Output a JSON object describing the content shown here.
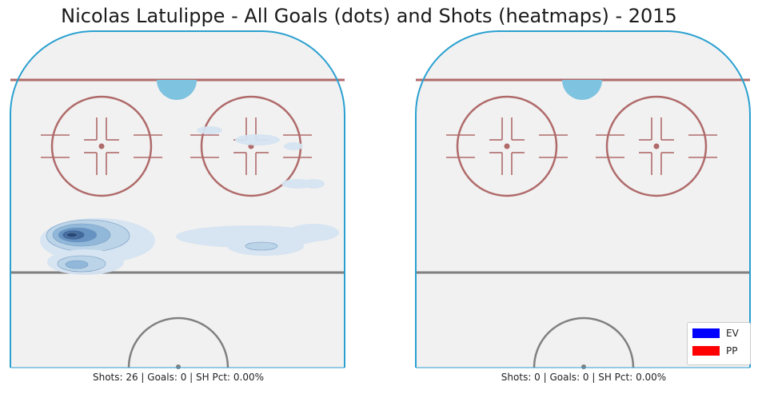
{
  "title": "Nicolas Latulippe - All Goals (dots) and Shots (heatmaps) - 2015",
  "colors": {
    "ice": "#f1f1f1",
    "boards": "#2aa0d0",
    "red_line": "#b06a6a",
    "blue_line_gray": "#808080",
    "crease": "#7ec3e0",
    "heat": [
      "#d6e4f1",
      "#b9d3e8",
      "#8db6d8",
      "#5f8fc0",
      "#3a6399",
      "#1e3f70"
    ],
    "ev": "#0000ff",
    "pp": "#ff0000"
  },
  "panels": {
    "left": {
      "caption": "Shots: 26 | Goals: 0 | SH Pct: 0.00%"
    },
    "right": {
      "caption": "Shots: 0 | Goals: 0 | SH Pct: 0.00%"
    }
  },
  "legend": [
    {
      "label": "EV",
      "color": "#0000ff"
    },
    {
      "label": "PP",
      "color": "#ff0000"
    }
  ],
  "chart_data": [
    {
      "type": "heatmap",
      "panel": "left",
      "shots": 26,
      "goals": 0,
      "sh_pct": "0.00%",
      "goal_points": []
    },
    {
      "type": "heatmap",
      "panel": "right",
      "shots": 0,
      "goals": 0,
      "sh_pct": "0.00%",
      "goal_points": []
    }
  ]
}
